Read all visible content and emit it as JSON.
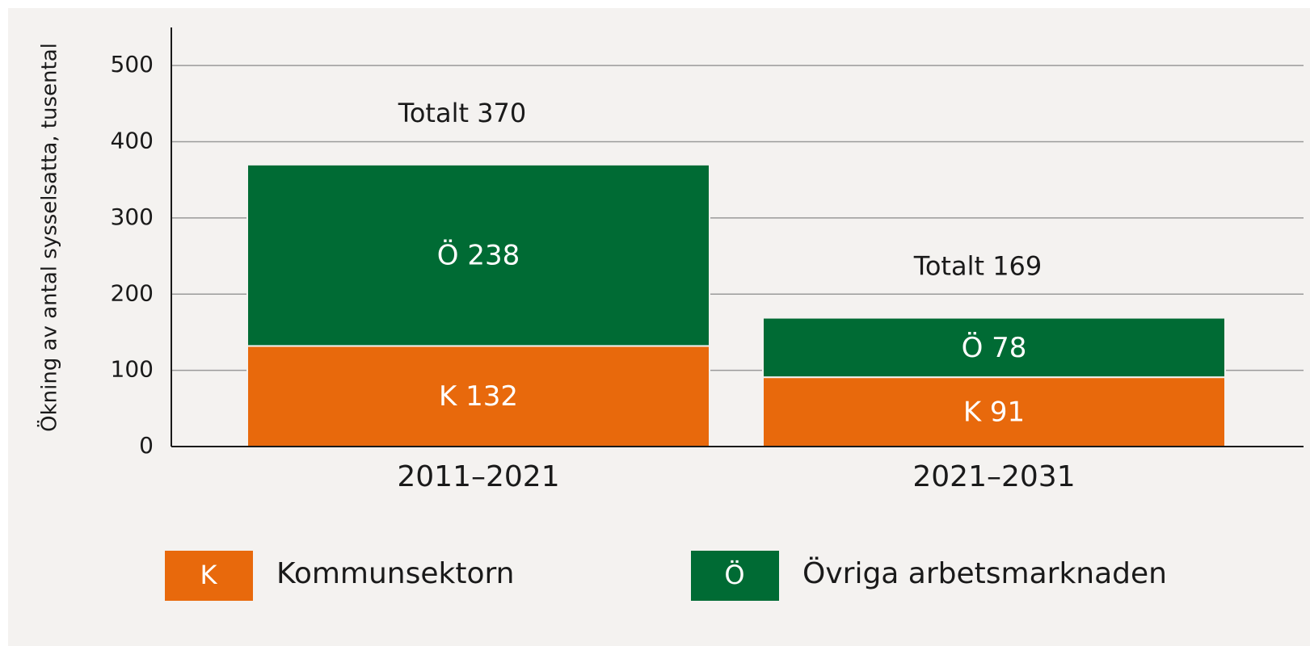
{
  "chart_data": {
    "type": "stacked_bar",
    "y_label": "Ökning av antal sysselsatta, tusental",
    "categories": [
      "2011–2021",
      "2021–2031"
    ],
    "series": [
      {
        "name": "Kommunsektorn",
        "key": "K",
        "color": "#e8690c",
        "values": [
          132,
          91
        ],
        "value_labels": [
          "K 132",
          "K 91"
        ]
      },
      {
        "name": "Övriga arbetsmarknaden",
        "key": "Ö",
        "color": "#006b34",
        "values": [
          238,
          78
        ],
        "value_labels": [
          "Ö 238",
          "Ö 78"
        ]
      }
    ],
    "totals": {
      "values": [
        370,
        169
      ],
      "labels": [
        "Totalt 370",
        "Totalt 169"
      ]
    },
    "ylim": [
      0,
      550
    ],
    "yticks": [
      0,
      100,
      200,
      300,
      400,
      500
    ],
    "grid": true,
    "legend": "bottom"
  }
}
